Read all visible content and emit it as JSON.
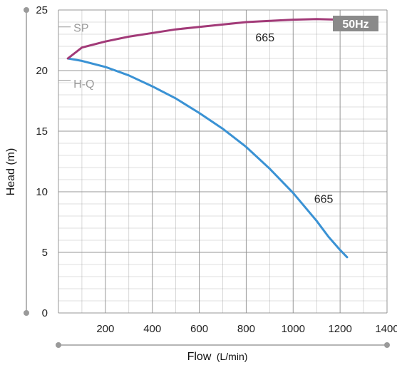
{
  "chart_data": {
    "type": "line",
    "xlabel": "Flow",
    "xunit": "(L/min)",
    "ylabel": "Head (m)",
    "xlim": [
      0,
      1400
    ],
    "ylim": [
      0,
      25
    ],
    "x_ticks": [
      "200",
      "400",
      "600",
      "800",
      "1000",
      "1200",
      "1400"
    ],
    "y_ticks": [
      "0",
      "5",
      "10",
      "15",
      "20",
      "25"
    ],
    "grid": true,
    "badge": "50Hz",
    "colors": {
      "hq": "#3a92d4",
      "sp": "#a23a78",
      "grid": "#8c8c8c",
      "badge": "#888888"
    },
    "series": [
      {
        "name": "H-Q",
        "model": "665",
        "x": [
          40,
          100,
          200,
          300,
          400,
          500,
          600,
          700,
          800,
          900,
          1000,
          1100,
          1150,
          1200,
          1230
        ],
        "y": [
          21.0,
          20.8,
          20.3,
          19.6,
          18.7,
          17.7,
          16.5,
          15.2,
          13.7,
          11.9,
          9.9,
          7.6,
          6.3,
          5.2,
          4.6
        ]
      },
      {
        "name": "SP",
        "model": "665",
        "x": [
          40,
          100,
          200,
          300,
          400,
          500,
          600,
          700,
          800,
          900,
          1000,
          1100,
          1200,
          1230
        ],
        "y": [
          21.0,
          21.9,
          22.4,
          22.8,
          23.1,
          23.4,
          23.6,
          23.8,
          24.0,
          24.1,
          24.2,
          24.25,
          24.2,
          24.2
        ]
      }
    ]
  }
}
